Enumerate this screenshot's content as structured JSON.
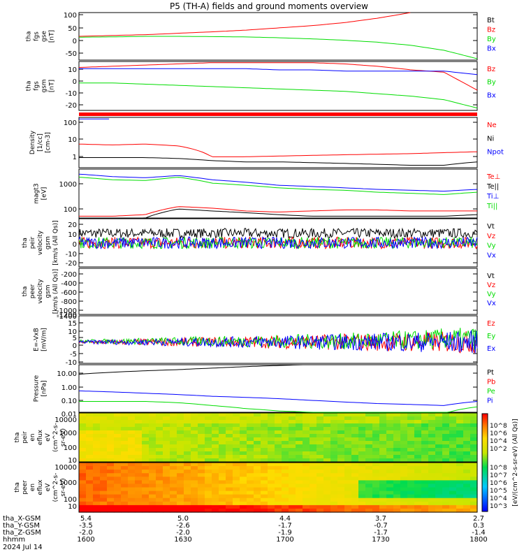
{
  "title": "P5 (TH-A) fields and ground moments overview",
  "colors": {
    "black": "#000000",
    "red": "#ff0000",
    "green": "#00dd00",
    "blue": "#0000ff"
  },
  "panels": [
    {
      "id": "fgs_gse",
      "ylabel": [
        "tha",
        "fgs",
        "gse",
        "[nT]"
      ],
      "ticks": [
        "100",
        "50",
        "0",
        "-50"
      ],
      "legend": [
        {
          "text": "Bt",
          "color": "#000000"
        },
        {
          "text": "Bz",
          "color": "#ff0000"
        },
        {
          "text": "By",
          "color": "#00dd00"
        },
        {
          "text": "Bx",
          "color": "#0000ff"
        }
      ]
    },
    {
      "id": "fgs_gsm",
      "ylabel": [
        "tha",
        "fgs",
        "gsm",
        "[nT]"
      ],
      "ticks": [
        "10",
        "0",
        "-10",
        "-20"
      ],
      "legend": [
        {
          "text": "Bz",
          "color": "#ff0000"
        },
        {
          "text": "By",
          "color": "#00dd00"
        },
        {
          "text": "Bx",
          "color": "#0000ff"
        }
      ]
    },
    {
      "id": "density",
      "ylabel": [
        "Density",
        "[1/cc]",
        "[cm-3]"
      ],
      "ticks": [
        "100",
        "10",
        "1"
      ],
      "legend": [
        {
          "text": "Ne",
          "color": "#ff0000"
        },
        {
          "text": "Ni",
          "color": "#000000"
        },
        {
          "text": "Npot",
          "color": "#0000ff"
        }
      ]
    },
    {
      "id": "temperature",
      "ylabel": [
        "magt3",
        "[eV]"
      ],
      "ticks": [
        "1000",
        "100"
      ],
      "legend": [
        {
          "text": "Te⊥",
          "color": "#ff0000"
        },
        {
          "text": "Te||",
          "color": "#000000"
        },
        {
          "text": "Ti⊥",
          "color": "#0000ff"
        },
        {
          "text": "Ti||",
          "color": "#00dd00"
        }
      ]
    },
    {
      "id": "peir_velocity",
      "ylabel": [
        "tha",
        "peir",
        "velocity",
        "gsm",
        "[km/s (All Qs)]"
      ],
      "ticks": [
        "20",
        "10",
        "0",
        "-10",
        "-20"
      ],
      "legend": [
        {
          "text": "Vt",
          "color": "#000000"
        },
        {
          "text": "Vz",
          "color": "#ff0000"
        },
        {
          "text": "Vy",
          "color": "#00dd00"
        },
        {
          "text": "Vx",
          "color": "#0000ff"
        }
      ]
    },
    {
      "id": "peer_velocity",
      "ylabel": [
        "tha",
        "peer",
        "velocity",
        "gsm",
        "[km/s (All Qs)]"
      ],
      "ticks": [
        "-200",
        "-400",
        "-600",
        "-800",
        "-1000",
        "-1200",
        "-1400"
      ],
      "legend": [
        {
          "text": "Vt",
          "color": "#000000"
        },
        {
          "text": "Vz",
          "color": "#ff0000"
        },
        {
          "text": "Vy",
          "color": "#00dd00"
        },
        {
          "text": "Vx",
          "color": "#0000ff"
        }
      ]
    },
    {
      "id": "efield",
      "ylabel": [
        "E=-VxB",
        "[mV/m]"
      ],
      "ticks": [
        "15",
        "10",
        "5",
        "0",
        "-5",
        "-10"
      ],
      "legend": [
        {
          "text": "Ez",
          "color": "#ff0000"
        },
        {
          "text": "Ey",
          "color": "#00dd00"
        },
        {
          "text": "Ex",
          "color": "#0000ff"
        }
      ]
    },
    {
      "id": "pressure",
      "ylabel": [
        "Pressure",
        "[nPa]"
      ],
      "ticks": [
        "10.00",
        "1.00",
        "0.10",
        "0.01"
      ],
      "legend": [
        {
          "text": "Pt",
          "color": "#000000"
        },
        {
          "text": "Pb",
          "color": "#ff0000"
        },
        {
          "text": "Pe",
          "color": "#00dd00"
        },
        {
          "text": "Pi",
          "color": "#0000ff"
        }
      ]
    },
    {
      "id": "peir_eflux",
      "ylabel": [
        "tha",
        "peir",
        "en",
        "eflux",
        "eV",
        "(cm^2-s-",
        "sr-eV)"
      ],
      "ticks": [
        "10000",
        "1000",
        "100",
        "10"
      ],
      "legend": []
    },
    {
      "id": "peer_eflux",
      "ylabel": [
        "tha",
        "peer",
        "en",
        "eflux",
        "eV",
        "(cm^2-s-",
        "sr-eV)"
      ],
      "ticks": [
        "10000",
        "1000",
        "100",
        "10"
      ],
      "legend": []
    }
  ],
  "colorbar": {
    "top_labels": [
      "10^8",
      "10^6",
      "10^4",
      "10^2"
    ],
    "bottom_labels": [
      "10^8",
      "10^7",
      "10^6",
      "10^5",
      "10^4",
      "10^3"
    ],
    "unit": "[eV/(cm^2-s-sr-eV) (All Qs)]"
  },
  "xaxis": {
    "rows": [
      {
        "label": "tha_X-GSM",
        "values": [
          "5.4",
          "5.0",
          "4.4",
          "3.7",
          "2.7"
        ]
      },
      {
        "label": "tha_Y-GSM",
        "values": [
          "-3.5",
          "-2.6",
          "-1.7",
          "-0.7",
          "0.3"
        ]
      },
      {
        "label": "tha_Z-GSM",
        "values": [
          "-2.0",
          "-2.0",
          "-1.9",
          "-1.7",
          "-1.4"
        ]
      },
      {
        "label": "hhmm",
        "values": [
          "1600",
          "1630",
          "1700",
          "1730",
          "1800"
        ]
      }
    ],
    "date": "2024 Jul 14"
  },
  "chart_data": {
    "type": "line",
    "title": "P5 (TH-A) fields and ground moments overview",
    "x": [
      1600,
      1610,
      1620,
      1630,
      1640,
      1650,
      1700,
      1710,
      1720,
      1730,
      1740,
      1750,
      1800
    ],
    "panels": [
      {
        "name": "tha fgs gse [nT]",
        "ylim": [
          -60,
          110
        ],
        "series": [
          {
            "name": "Bz",
            "values": [
              25,
              28,
              31,
              36,
              41,
              47,
              55,
              63,
              74,
              90,
              110,
              null,
              null
            ]
          },
          {
            "name": "By",
            "values": [
              22,
              23,
              25,
              25,
              24,
              23,
              20,
              16,
              11,
              4,
              -7,
              -25,
              -55
            ]
          }
        ]
      },
      {
        "name": "tha fgs gsm [nT]",
        "ylim": [
          -27,
          14
        ],
        "series": [
          {
            "name": "Bz",
            "values": [
              9,
              10,
              11,
              12,
              13,
              13,
              13,
              13,
              12,
              10,
              7,
              5,
              -10
            ]
          },
          {
            "name": "By",
            "values": [
              -4,
              -4,
              -5,
              -6,
              -7,
              -8,
              -9,
              -10,
              -11,
              -13,
              -15,
              -18,
              -25
            ]
          },
          {
            "name": "Bx",
            "values": [
              8,
              8,
              8,
              8,
              8,
              8,
              7,
              7,
              6,
              6,
              6,
              6,
              3
            ]
          }
        ]
      },
      {
        "name": "Density [1/cc]",
        "scale": "log",
        "ylim": [
          0.3,
          120
        ],
        "series": [
          {
            "name": "Ne",
            "values": [
              5,
              4.5,
              5,
              4,
              1.1,
              1.1,
              1.2,
              1.3,
              1.4,
              1.5,
              1.6,
              1.8,
              2.0
            ]
          },
          {
            "name": "Ni",
            "values": [
              1,
              1,
              1,
              0.9,
              0.7,
              0.6,
              0.6,
              0.55,
              0.5,
              0.45,
              0.4,
              0.4,
              0.6
            ]
          },
          {
            "name": "Npot",
            "values": [
              100,
              100,
              null,
              null,
              null,
              null,
              null,
              null,
              null,
              null,
              null,
              null,
              null
            ]
          }
        ]
      },
      {
        "name": "magt3 [eV]",
        "scale": "log",
        "ylim": [
          60,
          4000
        ],
        "series": [
          {
            "name": "Te⊥",
            "values": [
              70,
              70,
              80,
              160,
              140,
              110,
              100,
              110,
              120,
              120,
              110,
              110,
              110
            ]
          },
          {
            "name": "Te||",
            "values": [
              60,
              55,
              60,
              130,
              110,
              95,
              80,
              70,
              70,
              70,
              70,
              70,
              80
            ]
          },
          {
            "name": "Ti⊥",
            "values": [
              2600,
              2100,
              1900,
              2300,
              1600,
              1300,
              1000,
              900,
              800,
              700,
              650,
              600,
              700
            ]
          },
          {
            "name": "Ti||",
            "values": [
              2000,
              1600,
              1500,
              2000,
              1200,
              1000,
              800,
              700,
              650,
              550,
              500,
              450,
              550
            ]
          }
        ]
      },
      {
        "name": "tha peir velocity gsm [km/s (All Qs)]",
        "ylim": [
          -25,
          25
        ],
        "series": [
          {
            "name": "Vt",
            "values": [
              10,
              10,
              10,
              10,
              10,
              10,
              10,
              10,
              10,
              10,
              10,
              10,
              10
            ]
          },
          {
            "name": "Vz",
            "values": [
              0,
              0,
              0,
              0,
              0,
              0,
              0,
              0,
              0,
              0,
              0,
              0,
              0
            ]
          },
          {
            "name": "Vy",
            "values": [
              0,
              0,
              0,
              0,
              0,
              0,
              0,
              0,
              0,
              0,
              0,
              0,
              0
            ]
          },
          {
            "name": "Vx",
            "values": [
              0,
              0,
              0,
              0,
              0,
              0,
              0,
              0,
              0,
              0,
              0,
              0,
              0
            ]
          }
        ]
      },
      {
        "name": "E=-VxB [mV/m]",
        "ylim": [
          -13,
          16
        ],
        "series": [
          {
            "name": "Ez",
            "values": [
              0,
              0,
              0,
              0,
              0,
              0,
              0,
              0,
              0,
              0,
              0,
              0,
              0
            ]
          },
          {
            "name": "Ey",
            "values": [
              0.5,
              0.5,
              0.5,
              0.5,
              0.5,
              0.5,
              0.5,
              0.5,
              0.5,
              1,
              1,
              2,
              2
            ]
          },
          {
            "name": "Ex",
            "values": [
              0,
              0,
              0,
              0,
              0,
              0,
              0,
              0,
              0,
              0,
              0,
              0,
              0
            ]
          }
        ]
      },
      {
        "name": "Pressure [nPa]",
        "scale": "log",
        "ylim": [
          0.008,
          25
        ],
        "series": [
          {
            "name": "Pt",
            "values": [
              5,
              7,
              9,
              11,
              14,
              18,
              22,
              26,
              null,
              null,
              null,
              null,
              null
            ]
          },
          {
            "name": "Pi",
            "values": [
              0.3,
              0.25,
              0.2,
              0.16,
              0.12,
              0.1,
              0.08,
              0.06,
              0.045,
              0.035,
              0.03,
              0.025,
              0.05
            ]
          },
          {
            "name": "Pe",
            "values": [
              0.05,
              0.05,
              0.05,
              0.04,
              0.025,
              0.015,
              0.01,
              0.008,
              0.007,
              0.006,
              0.006,
              0.006,
              0.02
            ]
          }
        ]
      }
    ]
  }
}
